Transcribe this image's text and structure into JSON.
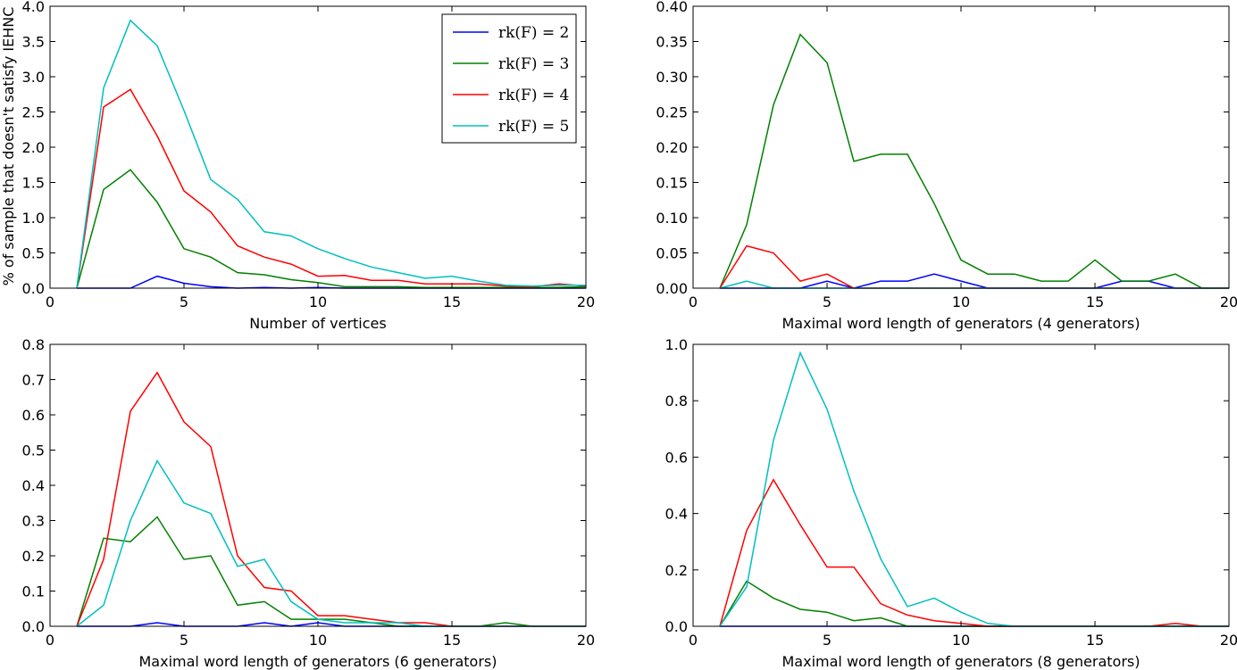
{
  "chart_data": [
    {
      "type": "line",
      "title": "",
      "xlabel": "Number of vertices",
      "ylabel": "% of sample that doesn't satisfy IEHNC",
      "xlim": [
        0,
        20
      ],
      "ylim": [
        0,
        4.0
      ],
      "xticks": [
        "0",
        "5",
        "10",
        "15",
        "20"
      ],
      "yticks": [
        "0.0",
        "0.5",
        "1.0",
        "1.5",
        "2.0",
        "2.5",
        "3.0",
        "3.5",
        "4.0"
      ],
      "legend_position": "top-right",
      "series": [
        {
          "name": "rk(F) = 2",
          "color": "#0000ff",
          "x": [
            1,
            2,
            3,
            4,
            5,
            6,
            7,
            8,
            9,
            10,
            11,
            12,
            13,
            14,
            15,
            16,
            17,
            18,
            19,
            20
          ],
          "y": [
            0,
            0,
            0,
            0.17,
            0.07,
            0.02,
            0,
            0.01,
            0,
            0.01,
            0,
            0,
            0,
            0,
            0,
            0,
            0,
            0,
            0,
            0
          ]
        },
        {
          "name": "rk(F) = 3",
          "color": "#008000",
          "x": [
            1,
            2,
            3,
            4,
            5,
            6,
            7,
            8,
            9,
            10,
            11,
            12,
            13,
            14,
            15,
            16,
            17,
            18,
            19,
            20
          ],
          "y": [
            0,
            1.4,
            1.68,
            1.22,
            0.56,
            0.44,
            0.22,
            0.19,
            0.12,
            0.08,
            0.02,
            0.02,
            0.02,
            0.01,
            0.01,
            0.01,
            0.01,
            0.01,
            0.01,
            0.02
          ]
        },
        {
          "name": "rk(F) = 4",
          "color": "#ff0000",
          "x": [
            1,
            2,
            3,
            4,
            5,
            6,
            7,
            8,
            9,
            10,
            11,
            12,
            13,
            14,
            15,
            16,
            17,
            18,
            19,
            20
          ],
          "y": [
            0,
            2.57,
            2.82,
            2.16,
            1.38,
            1.08,
            0.6,
            0.44,
            0.34,
            0.17,
            0.18,
            0.11,
            0.11,
            0.06,
            0.06,
            0.06,
            0.03,
            0.02,
            0.06,
            0.03
          ]
        },
        {
          "name": "rk(F) = 5",
          "color": "#00bfbf",
          "x": [
            1,
            2,
            3,
            4,
            5,
            6,
            7,
            8,
            9,
            10,
            11,
            12,
            13,
            14,
            15,
            16,
            17,
            18,
            19,
            20
          ],
          "y": [
            0,
            2.84,
            3.8,
            3.44,
            2.52,
            1.54,
            1.26,
            0.8,
            0.74,
            0.56,
            0.42,
            0.3,
            0.22,
            0.14,
            0.17,
            0.1,
            0.04,
            0.03,
            0.04,
            0.04
          ]
        }
      ]
    },
    {
      "type": "line",
      "title": "",
      "xlabel": "Maximal word length of generators (4 generators)",
      "ylabel": "",
      "xlim": [
        0,
        20
      ],
      "ylim": [
        0,
        0.4
      ],
      "xticks": [
        "0",
        "5",
        "10",
        "15",
        "20"
      ],
      "yticks": [
        "0.00",
        "0.05",
        "0.10",
        "0.15",
        "0.20",
        "0.25",
        "0.30",
        "0.35",
        "0.40"
      ],
      "series": [
        {
          "name": "rk(F) = 2",
          "color": "#0000ff",
          "x": [
            1,
            2,
            3,
            4,
            5,
            6,
            7,
            8,
            9,
            10,
            11,
            12,
            13,
            14,
            15,
            16,
            17,
            18,
            19,
            20
          ],
          "y": [
            0,
            0,
            0,
            0,
            0.01,
            0,
            0.01,
            0.01,
            0.02,
            0.01,
            0,
            0,
            0,
            0,
            0,
            0.01,
            0.01,
            0,
            0,
            0
          ]
        },
        {
          "name": "rk(F) = 3",
          "color": "#008000",
          "x": [
            1,
            2,
            3,
            4,
            5,
            6,
            7,
            8,
            9,
            10,
            11,
            12,
            13,
            14,
            15,
            16,
            17,
            18,
            19,
            20
          ],
          "y": [
            0,
            0.09,
            0.26,
            0.36,
            0.32,
            0.18,
            0.19,
            0.19,
            0.12,
            0.04,
            0.02,
            0.02,
            0.01,
            0.01,
            0.04,
            0.01,
            0.01,
            0.02,
            0,
            0
          ]
        },
        {
          "name": "rk(F) = 4",
          "color": "#ff0000",
          "x": [
            1,
            2,
            3,
            4,
            5,
            6,
            7,
            8,
            9,
            10,
            11,
            12,
            13,
            14,
            15,
            16,
            17,
            18,
            19,
            20
          ],
          "y": [
            0,
            0.06,
            0.05,
            0.01,
            0.02,
            0,
            0,
            0,
            0,
            0,
            0,
            0,
            0,
            0,
            0,
            0,
            0,
            0,
            0,
            0
          ]
        },
        {
          "name": "rk(F) = 5",
          "color": "#00bfbf",
          "x": [
            1,
            2,
            3,
            4,
            5,
            6,
            7,
            8,
            9,
            10,
            11,
            12,
            13,
            14,
            15,
            16,
            17,
            18,
            19,
            20
          ],
          "y": [
            0,
            0.01,
            0,
            0,
            0,
            0,
            0,
            0,
            0,
            0,
            0,
            0,
            0,
            0,
            0,
            0,
            0,
            0,
            0,
            0
          ]
        }
      ]
    },
    {
      "type": "line",
      "title": "",
      "xlabel": "Maximal word length of generators (6 generators)",
      "ylabel": "",
      "xlim": [
        0,
        20
      ],
      "ylim": [
        0,
        0.8
      ],
      "xticks": [
        "0",
        "5",
        "10",
        "15",
        "20"
      ],
      "yticks": [
        "0.0",
        "0.1",
        "0.2",
        "0.3",
        "0.4",
        "0.5",
        "0.6",
        "0.7",
        "0.8"
      ],
      "series": [
        {
          "name": "rk(F) = 2",
          "color": "#0000ff",
          "x": [
            1,
            2,
            3,
            4,
            5,
            6,
            7,
            8,
            9,
            10,
            11,
            12,
            13,
            14,
            15,
            16,
            17,
            18,
            19,
            20
          ],
          "y": [
            0,
            0,
            0,
            0.01,
            0,
            0,
            0,
            0.01,
            0,
            0.01,
            0,
            0,
            0,
            0,
            0,
            0,
            0,
            0,
            0,
            0
          ]
        },
        {
          "name": "rk(F) = 3",
          "color": "#008000",
          "x": [
            1,
            2,
            3,
            4,
            5,
            6,
            7,
            8,
            9,
            10,
            11,
            12,
            13,
            14,
            15,
            16,
            17,
            18,
            19,
            20
          ],
          "y": [
            0,
            0.25,
            0.24,
            0.31,
            0.19,
            0.2,
            0.06,
            0.07,
            0.02,
            0.02,
            0.02,
            0.01,
            0,
            0,
            0,
            0,
            0.01,
            0,
            0,
            0
          ]
        },
        {
          "name": "rk(F) = 4",
          "color": "#ff0000",
          "x": [
            1,
            2,
            3,
            4,
            5,
            6,
            7,
            8,
            9,
            10,
            11,
            12,
            13,
            14,
            15,
            16,
            17,
            18,
            19,
            20
          ],
          "y": [
            0,
            0.19,
            0.61,
            0.72,
            0.58,
            0.51,
            0.2,
            0.11,
            0.1,
            0.03,
            0.03,
            0.02,
            0.01,
            0.01,
            0,
            0,
            0,
            0,
            0,
            0
          ]
        },
        {
          "name": "rk(F) = 5",
          "color": "#00bfbf",
          "x": [
            1,
            2,
            3,
            4,
            5,
            6,
            7,
            8,
            9,
            10,
            11,
            12,
            13,
            14,
            15,
            16,
            17,
            18,
            19,
            20
          ],
          "y": [
            0,
            0.06,
            0.3,
            0.47,
            0.35,
            0.32,
            0.17,
            0.19,
            0.07,
            0.02,
            0.01,
            0.01,
            0.01,
            0,
            0,
            0,
            0,
            0,
            0,
            0
          ]
        }
      ]
    },
    {
      "type": "line",
      "title": "",
      "xlabel": "Maximal word length of generators (8 generators)",
      "ylabel": "",
      "xlim": [
        0,
        20
      ],
      "ylim": [
        0,
        1.0
      ],
      "xticks": [
        "0",
        "5",
        "10",
        "15",
        "20"
      ],
      "yticks": [
        "0.0",
        "0.2",
        "0.4",
        "0.6",
        "0.8",
        "1.0"
      ],
      "series": [
        {
          "name": "rk(F) = 2",
          "color": "#0000ff",
          "x": [
            1,
            2,
            3,
            4,
            5,
            6,
            7,
            8,
            9,
            10,
            11,
            12,
            13,
            14,
            15,
            16,
            17,
            18,
            19,
            20
          ],
          "y": [
            0,
            0,
            0,
            0,
            0,
            0,
            0,
            0,
            0,
            0,
            0,
            0,
            0,
            0,
            0,
            0,
            0,
            0,
            0,
            0
          ]
        },
        {
          "name": "rk(F) = 3",
          "color": "#008000",
          "x": [
            1,
            2,
            3,
            4,
            5,
            6,
            7,
            8,
            9,
            10,
            11,
            12,
            13,
            14,
            15,
            16,
            17,
            18,
            19,
            20
          ],
          "y": [
            0,
            0.16,
            0.1,
            0.06,
            0.05,
            0.02,
            0.03,
            0,
            0,
            0,
            0,
            0,
            0,
            0,
            0,
            0,
            0,
            0,
            0,
            0
          ]
        },
        {
          "name": "rk(F) = 4",
          "color": "#ff0000",
          "x": [
            1,
            2,
            3,
            4,
            5,
            6,
            7,
            8,
            9,
            10,
            11,
            12,
            13,
            14,
            15,
            16,
            17,
            18,
            19,
            20
          ],
          "y": [
            0,
            0.34,
            0.52,
            0.36,
            0.21,
            0.21,
            0.08,
            0.04,
            0.02,
            0.01,
            0,
            0,
            0,
            0,
            0,
            0,
            0,
            0.01,
            0,
            0
          ]
        },
        {
          "name": "rk(F) = 5",
          "color": "#00bfbf",
          "x": [
            1,
            2,
            3,
            4,
            5,
            6,
            7,
            8,
            9,
            10,
            11,
            12,
            13,
            14,
            15,
            16,
            17,
            18,
            19,
            20
          ],
          "y": [
            0,
            0.14,
            0.66,
            0.97,
            0.77,
            0.48,
            0.24,
            0.07,
            0.1,
            0.05,
            0.01,
            0,
            0,
            0,
            0,
            0,
            0,
            0,
            0,
            0
          ]
        }
      ]
    }
  ]
}
